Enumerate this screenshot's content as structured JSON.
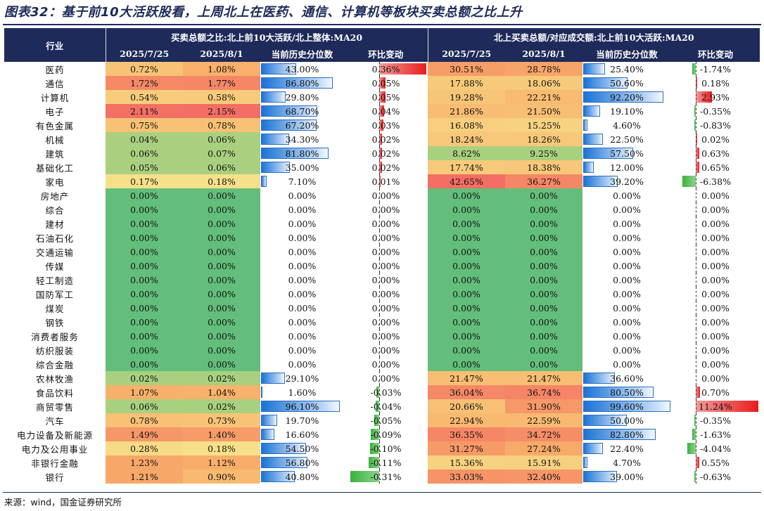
{
  "title": "图表32：基于前10大活跃股看，上周北上在医药、通信、计算机等板块买卖总额之比上升",
  "source": "来源：wind，国金证券研究所",
  "header": {
    "industry": "行业",
    "group_a": "买卖总额之比:北上前10大活跃/北上整体:MA20",
    "group_b": "北上买卖总额/对应成交额:北上前10大活跃:MA20",
    "d1": "2025/7/25",
    "d2": "2025/8/1",
    "pct": "当前历史分位数",
    "chg": "环比变动"
  },
  "rows": [
    {
      "name": "医药",
      "a1": "0.72%",
      "a2": "1.08%",
      "ap": "43.00%",
      "ac": "0.36%",
      "b1": "30.51%",
      "b2": "28.78%",
      "bp": "25.40%",
      "bc": "-1.74%"
    },
    {
      "name": "通信",
      "a1": "1.72%",
      "a2": "1.77%",
      "ap": "86.80%",
      "ac": "0.05%",
      "b1": "17.88%",
      "b2": "18.06%",
      "bp": "50.60%",
      "bc": "0.18%"
    },
    {
      "name": "计算机",
      "a1": "0.54%",
      "a2": "0.58%",
      "ap": "29.80%",
      "ac": "0.05%",
      "b1": "19.28%",
      "b2": "22.21%",
      "bp": "92.20%",
      "bc": "2.93%"
    },
    {
      "name": "电子",
      "a1": "2.11%",
      "a2": "2.15%",
      "ap": "68.70%",
      "ac": "0.04%",
      "b1": "21.86%",
      "b2": "21.50%",
      "bp": "19.10%",
      "bc": "-0.35%"
    },
    {
      "name": "有色金属",
      "a1": "0.75%",
      "a2": "0.78%",
      "ap": "67.20%",
      "ac": "0.03%",
      "b1": "16.08%",
      "b2": "15.25%",
      "bp": "4.60%",
      "bc": "-0.83%"
    },
    {
      "name": "机械",
      "a1": "0.04%",
      "a2": "0.06%",
      "ap": "34.30%",
      "ac": "0.02%",
      "b1": "18.24%",
      "b2": "18.26%",
      "bp": "22.50%",
      "bc": "0.02%"
    },
    {
      "name": "建筑",
      "a1": "0.06%",
      "a2": "0.07%",
      "ap": "81.80%",
      "ac": "0.02%",
      "b1": "8.62%",
      "b2": "9.25%",
      "bp": "57.50%",
      "bc": "0.63%"
    },
    {
      "name": "基础化工",
      "a1": "0.05%",
      "a2": "0.06%",
      "ap": "35.00%",
      "ac": "0.02%",
      "b1": "17.74%",
      "b2": "18.38%",
      "bp": "12.00%",
      "bc": "0.65%"
    },
    {
      "name": "家电",
      "a1": "0.17%",
      "a2": "0.18%",
      "ap": "7.10%",
      "ac": "0.01%",
      "b1": "42.65%",
      "b2": "36.27%",
      "bp": "39.20%",
      "bc": "-6.38%"
    },
    {
      "name": "房地产",
      "a1": "0.00%",
      "a2": "0.00%",
      "ap": "0.00%",
      "ac": "0.00%",
      "b1": "0.00%",
      "b2": "0.00%",
      "bp": "0.00%",
      "bc": "0.00%"
    },
    {
      "name": "综合",
      "a1": "0.00%",
      "a2": "0.00%",
      "ap": "0.00%",
      "ac": "0.00%",
      "b1": "0.00%",
      "b2": "0.00%",
      "bp": "0.00%",
      "bc": "0.00%"
    },
    {
      "name": "建材",
      "a1": "0.00%",
      "a2": "0.00%",
      "ap": "0.00%",
      "ac": "0.00%",
      "b1": "0.00%",
      "b2": "0.00%",
      "bp": "0.00%",
      "bc": "0.00%"
    },
    {
      "name": "石油石化",
      "a1": "0.00%",
      "a2": "0.00%",
      "ap": "0.00%",
      "ac": "0.00%",
      "b1": "0.00%",
      "b2": "0.00%",
      "bp": "0.00%",
      "bc": "0.00%"
    },
    {
      "name": "交通运输",
      "a1": "0.00%",
      "a2": "0.00%",
      "ap": "0.00%",
      "ac": "0.00%",
      "b1": "0.00%",
      "b2": "0.00%",
      "bp": "0.00%",
      "bc": "0.00%"
    },
    {
      "name": "传媒",
      "a1": "0.00%",
      "a2": "0.00%",
      "ap": "0.00%",
      "ac": "0.00%",
      "b1": "0.00%",
      "b2": "0.00%",
      "bp": "0.00%",
      "bc": "0.00%"
    },
    {
      "name": "轻工制造",
      "a1": "0.00%",
      "a2": "0.00%",
      "ap": "0.00%",
      "ac": "0.00%",
      "b1": "0.00%",
      "b2": "0.00%",
      "bp": "0.00%",
      "bc": "0.00%"
    },
    {
      "name": "国防军工",
      "a1": "0.00%",
      "a2": "0.00%",
      "ap": "0.00%",
      "ac": "0.00%",
      "b1": "0.00%",
      "b2": "0.00%",
      "bp": "0.00%",
      "bc": "0.00%"
    },
    {
      "name": "煤炭",
      "a1": "0.00%",
      "a2": "0.00%",
      "ap": "0.00%",
      "ac": "0.00%",
      "b1": "0.00%",
      "b2": "0.00%",
      "bp": "0.00%",
      "bc": "0.00%"
    },
    {
      "name": "钢铁",
      "a1": "0.00%",
      "a2": "0.00%",
      "ap": "0.00%",
      "ac": "0.00%",
      "b1": "0.00%",
      "b2": "0.00%",
      "bp": "0.00%",
      "bc": "0.00%"
    },
    {
      "name": "消费者服务",
      "a1": "0.00%",
      "a2": "0.00%",
      "ap": "0.00%",
      "ac": "0.00%",
      "b1": "0.00%",
      "b2": "0.00%",
      "bp": "0.00%",
      "bc": "0.00%"
    },
    {
      "name": "纺织服装",
      "a1": "0.00%",
      "a2": "0.00%",
      "ap": "0.00%",
      "ac": "0.00%",
      "b1": "0.00%",
      "b2": "0.00%",
      "bp": "0.00%",
      "bc": "0.00%"
    },
    {
      "name": "综合金融",
      "a1": "0.00%",
      "a2": "0.00%",
      "ap": "0.00%",
      "ac": "0.00%",
      "b1": "0.00%",
      "b2": "0.00%",
      "bp": "0.00%",
      "bc": "0.00%"
    },
    {
      "name": "农林牧渔",
      "a1": "0.02%",
      "a2": "0.02%",
      "ap": "29.10%",
      "ac": "0.00%",
      "b1": "21.47%",
      "b2": "21.47%",
      "bp": "36.60%",
      "bc": "0.00%"
    },
    {
      "name": "食品饮料",
      "a1": "1.07%",
      "a2": "1.04%",
      "ap": "1.60%",
      "ac": "-0.03%",
      "b1": "36.04%",
      "b2": "36.74%",
      "bp": "80.50%",
      "bc": "0.70%"
    },
    {
      "name": "商贸零售",
      "a1": "0.06%",
      "a2": "0.02%",
      "ap": "96.10%",
      "ac": "-0.04%",
      "b1": "20.66%",
      "b2": "31.90%",
      "bp": "99.60%",
      "bc": "11.24%"
    },
    {
      "name": "汽车",
      "a1": "0.78%",
      "a2": "0.73%",
      "ap": "19.70%",
      "ac": "-0.05%",
      "b1": "22.94%",
      "b2": "22.59%",
      "bp": "50.00%",
      "bc": "-0.35%"
    },
    {
      "name": "电力设备及新能源",
      "a1": "1.49%",
      "a2": "1.40%",
      "ap": "16.60%",
      "ac": "-0.09%",
      "b1": "36.35%",
      "b2": "34.72%",
      "bp": "82.80%",
      "bc": "-1.63%"
    },
    {
      "name": "电力及公用事业",
      "a1": "0.28%",
      "a2": "0.18%",
      "ap": "54.50%",
      "ac": "-0.10%",
      "b1": "31.27%",
      "b2": "27.24%",
      "bp": "22.40%",
      "bc": "-4.04%"
    },
    {
      "name": "非银行金融",
      "a1": "1.23%",
      "a2": "1.12%",
      "ap": "56.80%",
      "ac": "-0.11%",
      "b1": "15.36%",
      "b2": "15.91%",
      "bp": "4.70%",
      "bc": "0.55%"
    },
    {
      "name": "银行",
      "a1": "1.21%",
      "a2": "0.90%",
      "ap": "40.80%",
      "ac": "-0.31%",
      "b1": "33.03%",
      "b2": "32.40%",
      "bp": "39.00%",
      "bc": "-0.63%"
    }
  ]
}
